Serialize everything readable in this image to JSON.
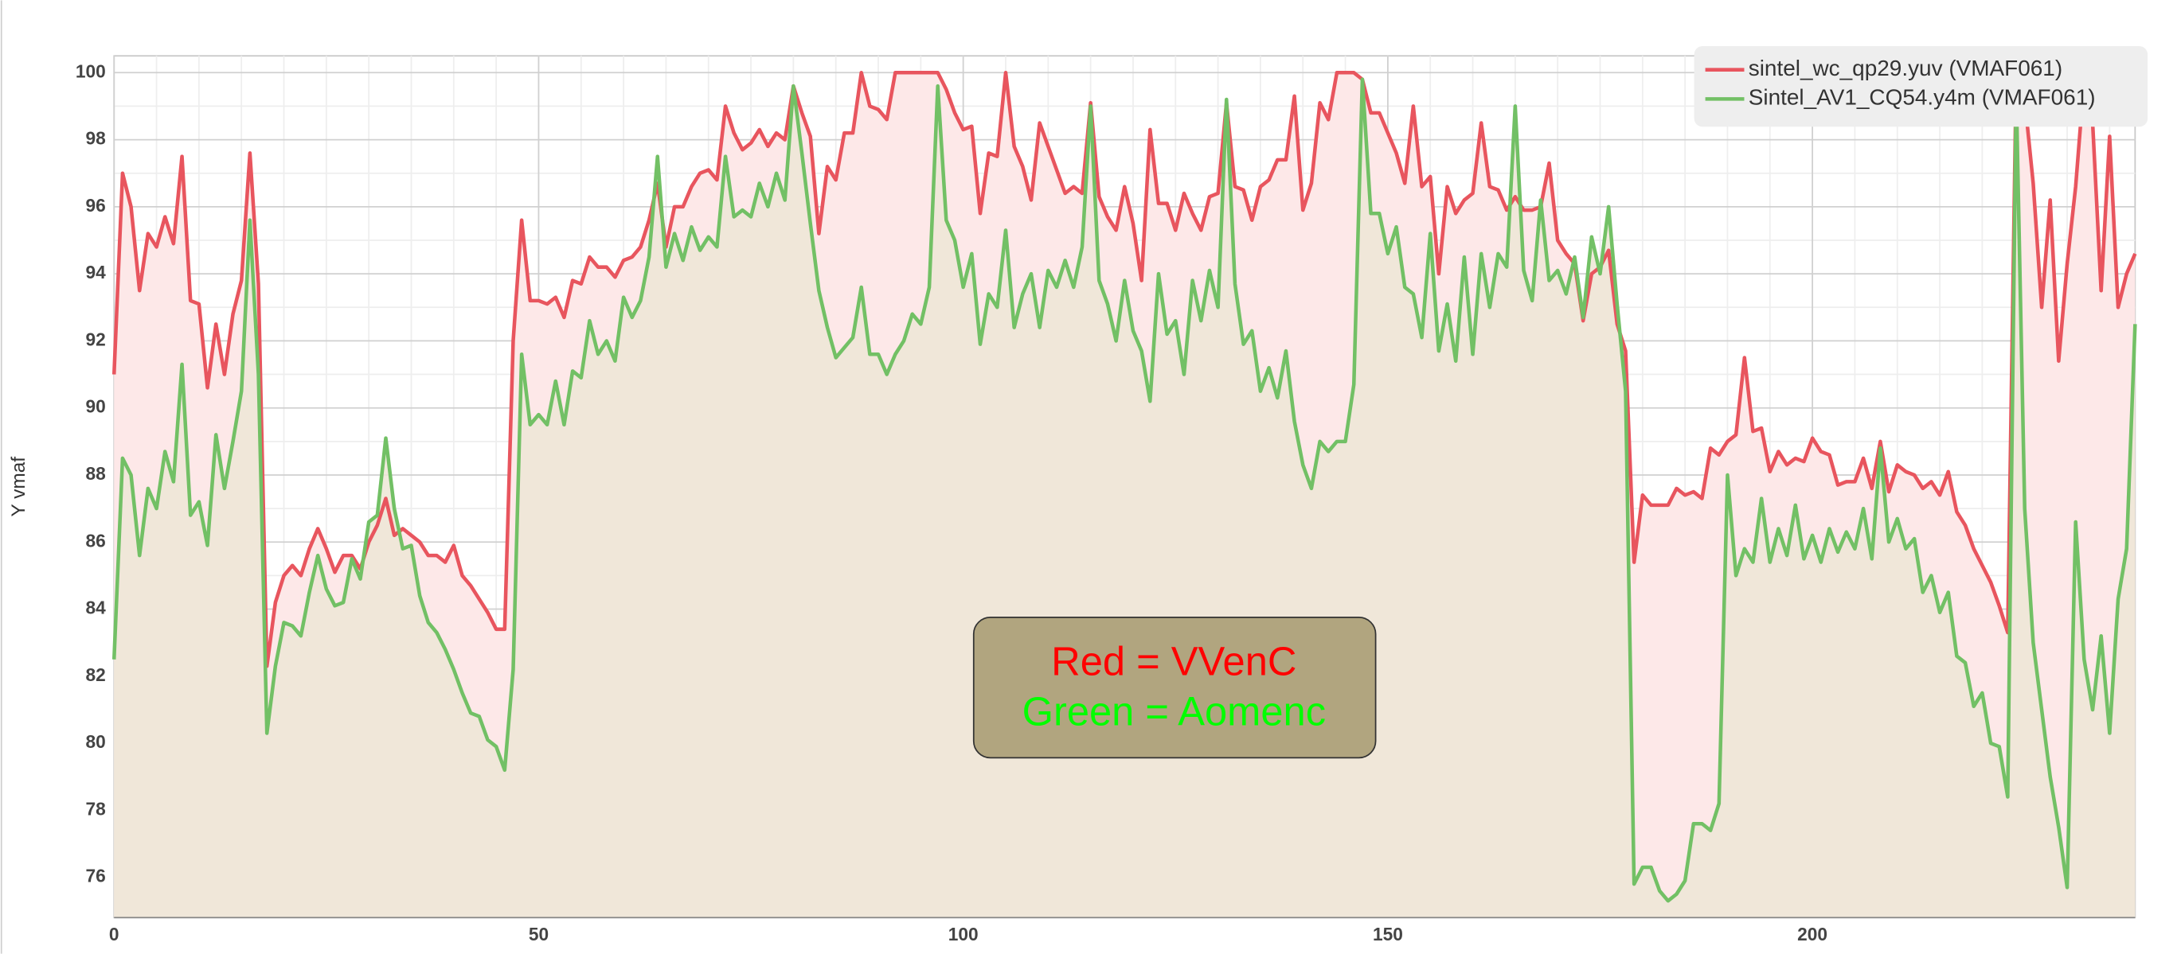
{
  "chart_data": {
    "type": "line",
    "y_label": "Y vmaf",
    "annotation_lines": [
      "Red = VVenC",
      "Green = Aomenc"
    ],
    "legend": "top-right",
    "grid": true,
    "xlim": [
      0,
      238
    ],
    "ylim": [
      74.8,
      100.5
    ],
    "xticks": [
      0,
      50,
      100,
      150,
      200
    ],
    "yticks": [
      76,
      78,
      80,
      82,
      84,
      86,
      88,
      90,
      92,
      94,
      96,
      98,
      100
    ],
    "x": [
      0,
      1,
      2,
      3,
      4,
      5,
      6,
      7,
      8,
      9,
      10,
      11,
      12,
      13,
      14,
      15,
      16,
      17,
      18,
      19,
      20,
      21,
      22,
      23,
      24,
      25,
      26,
      27,
      28,
      29,
      30,
      31,
      32,
      33,
      34,
      35,
      36,
      37,
      38,
      39,
      40,
      41,
      42,
      43,
      44,
      45,
      46,
      47,
      48,
      49,
      50,
      51,
      52,
      53,
      54,
      55,
      56,
      57,
      58,
      59,
      60,
      61,
      62,
      63,
      64,
      65,
      66,
      67,
      68,
      69,
      70,
      71,
      72,
      73,
      74,
      75,
      76,
      77,
      78,
      79,
      80,
      81,
      82,
      83,
      84,
      85,
      86,
      87,
      88,
      89,
      90,
      91,
      92,
      93,
      94,
      95,
      96,
      97,
      98,
      99,
      100,
      101,
      102,
      103,
      104,
      105,
      106,
      107,
      108,
      109,
      110,
      111,
      112,
      113,
      114,
      115,
      116,
      117,
      118,
      119,
      120,
      121,
      122,
      123,
      124,
      125,
      126,
      127,
      128,
      129,
      130,
      131,
      132,
      133,
      134,
      135,
      136,
      137,
      138,
      139,
      140,
      141,
      142,
      143,
      144,
      145,
      146,
      147,
      148,
      149,
      150,
      151,
      152,
      153,
      154,
      155,
      156,
      157,
      158,
      159,
      160,
      161,
      162,
      163,
      164,
      165,
      166,
      167,
      168,
      169,
      170,
      171,
      172,
      173,
      174,
      175,
      176,
      177,
      178,
      179,
      180,
      181,
      182,
      183,
      184,
      185,
      186,
      187,
      188,
      189,
      190,
      191,
      192,
      193,
      194,
      195,
      196,
      197,
      198,
      199,
      200,
      201,
      202,
      203,
      204,
      205,
      206,
      207,
      208,
      209,
      210,
      211,
      212,
      213,
      214,
      215,
      216,
      217,
      218,
      219,
      220,
      221,
      222,
      223,
      224,
      225,
      226,
      227,
      228,
      229,
      230,
      231,
      232,
      233,
      234,
      235,
      236,
      237,
      238
    ],
    "series": [
      {
        "name": "sintel_wc_qp29.yuv (VMAF061)",
        "color": "#e8555e",
        "fill": "#fde8e8",
        "values": [
          91,
          97,
          96,
          93.5,
          95.2,
          94.8,
          95.7,
          94.9,
          97.5,
          93.2,
          93.1,
          90.6,
          92.5,
          91,
          92.8,
          93.8,
          97.6,
          93.7,
          82.3,
          84.2,
          85,
          85.3,
          85,
          85.8,
          86.4,
          85.8,
          85.1,
          85.6,
          85.6,
          85.2,
          86,
          86.5,
          87.3,
          86.2,
          86.4,
          86.2,
          86,
          85.6,
          85.6,
          85.4,
          85.9,
          85,
          84.7,
          84.3,
          83.9,
          83.4,
          83.4,
          92,
          95.6,
          93.2,
          93.2,
          93.1,
          93.3,
          92.7,
          93.8,
          93.7,
          94.5,
          94.2,
          94.2,
          93.9,
          94.4,
          94.5,
          94.8,
          95.6,
          96.7,
          94.8,
          96,
          96,
          96.6,
          97,
          97.1,
          96.8,
          99,
          98.2,
          97.7,
          97.9,
          98.3,
          97.8,
          98.2,
          98,
          99.6,
          98.8,
          98.1,
          95.2,
          97.2,
          96.8,
          98.2,
          98.2,
          100,
          99,
          98.9,
          98.6,
          100,
          100,
          100,
          100,
          100,
          100,
          99.5,
          98.8,
          98.3,
          98.4,
          95.8,
          97.6,
          97.5,
          100,
          97.8,
          97.2,
          96.2,
          98.5,
          97.8,
          97.1,
          96.4,
          96.6,
          96.4,
          99.1,
          96.3,
          95.7,
          95.3,
          96.6,
          95.5,
          93.8,
          98.3,
          96.1,
          96.1,
          95.3,
          96.4,
          95.8,
          95.3,
          96.3,
          96.4,
          99.1,
          96.6,
          96.5,
          95.6,
          96.6,
          96.8,
          97.4,
          97.4,
          99.3,
          95.9,
          96.7,
          99.1,
          98.6,
          100,
          100,
          100,
          99.8,
          98.8,
          98.8,
          98.2,
          97.6,
          96.7,
          99,
          96.6,
          96.9,
          94,
          96.6,
          95.8,
          96.2,
          96.4,
          98.5,
          96.6,
          96.5,
          95.9,
          96.3,
          95.9,
          95.9,
          96,
          97.3,
          95,
          94.6,
          94.3,
          92.6,
          94,
          94.2,
          94.7,
          92.5,
          91.7,
          85.4,
          87.4,
          87.1,
          87.1,
          87.1,
          87.6,
          87.4,
          87.5,
          87.3,
          88.8,
          88.6,
          89,
          89.2,
          91.5,
          89.3,
          89.4,
          88.1,
          88.7,
          88.3,
          88.5,
          88.4,
          89.1,
          88.7,
          88.6,
          87.7,
          87.8,
          87.8,
          88.5,
          87.6,
          89,
          87.5,
          88.3,
          88.1,
          88,
          87.6,
          87.8,
          87.4,
          88.1,
          86.9,
          86.5,
          85.8,
          85.3,
          84.8,
          84.1,
          83.3,
          100,
          99.2,
          96.7,
          93,
          96.2,
          91.4,
          94.3,
          96.6,
          99.8,
          98.5,
          93.5,
          98.1,
          93,
          94,
          94.6
        ]
      },
      {
        "name": "Sintel_AV1_CQ54.y4m (VMAF061)",
        "color": "#72c065",
        "fill": "#ede6d6",
        "values": [
          82.5,
          88.5,
          88,
          85.6,
          87.6,
          87,
          88.7,
          87.8,
          91.3,
          86.8,
          87.2,
          85.9,
          89.2,
          87.6,
          89,
          90.5,
          95.6,
          91,
          80.3,
          82.3,
          83.6,
          83.5,
          83.2,
          84.5,
          85.6,
          84.6,
          84.1,
          84.2,
          85.5,
          84.9,
          86.6,
          86.8,
          89.1,
          87,
          85.8,
          85.9,
          84.4,
          83.6,
          83.3,
          82.8,
          82.2,
          81.5,
          80.9,
          80.8,
          80.1,
          79.9,
          79.2,
          82.2,
          91.6,
          89.5,
          89.8,
          89.5,
          90.8,
          89.5,
          91.1,
          90.9,
          92.6,
          91.6,
          92,
          91.4,
          93.3,
          92.7,
          93.2,
          94.5,
          97.5,
          94.2,
          95.2,
          94.4,
          95.4,
          94.7,
          95.1,
          94.8,
          97.5,
          95.7,
          95.9,
          95.7,
          96.7,
          96,
          97,
          96.2,
          99.6,
          97.6,
          95.5,
          93.5,
          92.4,
          91.5,
          91.8,
          92.1,
          93.6,
          91.6,
          91.6,
          91,
          91.6,
          92,
          92.8,
          92.5,
          93.6,
          99.6,
          95.6,
          95,
          93.6,
          94.6,
          91.9,
          93.4,
          93,
          95.3,
          92.4,
          93.4,
          94,
          92.4,
          94.1,
          93.6,
          94.4,
          93.6,
          94.8,
          99,
          93.8,
          93.1,
          92,
          93.8,
          92.3,
          91.7,
          90.2,
          94,
          92.2,
          92.6,
          91,
          93.8,
          92.6,
          94.1,
          93,
          99.2,
          93.7,
          91.9,
          92.3,
          90.5,
          91.2,
          90.3,
          91.7,
          89.6,
          88.3,
          87.6,
          89,
          88.7,
          89,
          89,
          90.7,
          99.8,
          95.8,
          95.8,
          94.6,
          95.4,
          93.6,
          93.4,
          92.1,
          95.2,
          91.7,
          93.1,
          91.4,
          94.5,
          91.6,
          94.6,
          93,
          94.6,
          94.2,
          99,
          94.1,
          93.2,
          96.2,
          93.8,
          94.1,
          93.4,
          94.5,
          92.7,
          95.1,
          94,
          96,
          93.1,
          90.5,
          75.8,
          76.3,
          76.3,
          75.6,
          75.3,
          75.5,
          75.9,
          77.6,
          77.6,
          77.4,
          78.2,
          88,
          85,
          85.8,
          85.4,
          87.3,
          85.4,
          86.4,
          85.6,
          87.1,
          85.5,
          86.2,
          85.4,
          86.4,
          85.7,
          86.3,
          85.8,
          87,
          85.5,
          88.8,
          86,
          86.7,
          85.8,
          86.1,
          84.5,
          85,
          83.9,
          84.5,
          82.6,
          82.4,
          81.1,
          81.5,
          80,
          79.9,
          78.4,
          99.5,
          87,
          83,
          81,
          79,
          77.5,
          75.7,
          86.6,
          82.5,
          81,
          83.2,
          80.3,
          84.3,
          85.8,
          92.5
        ]
      }
    ]
  }
}
